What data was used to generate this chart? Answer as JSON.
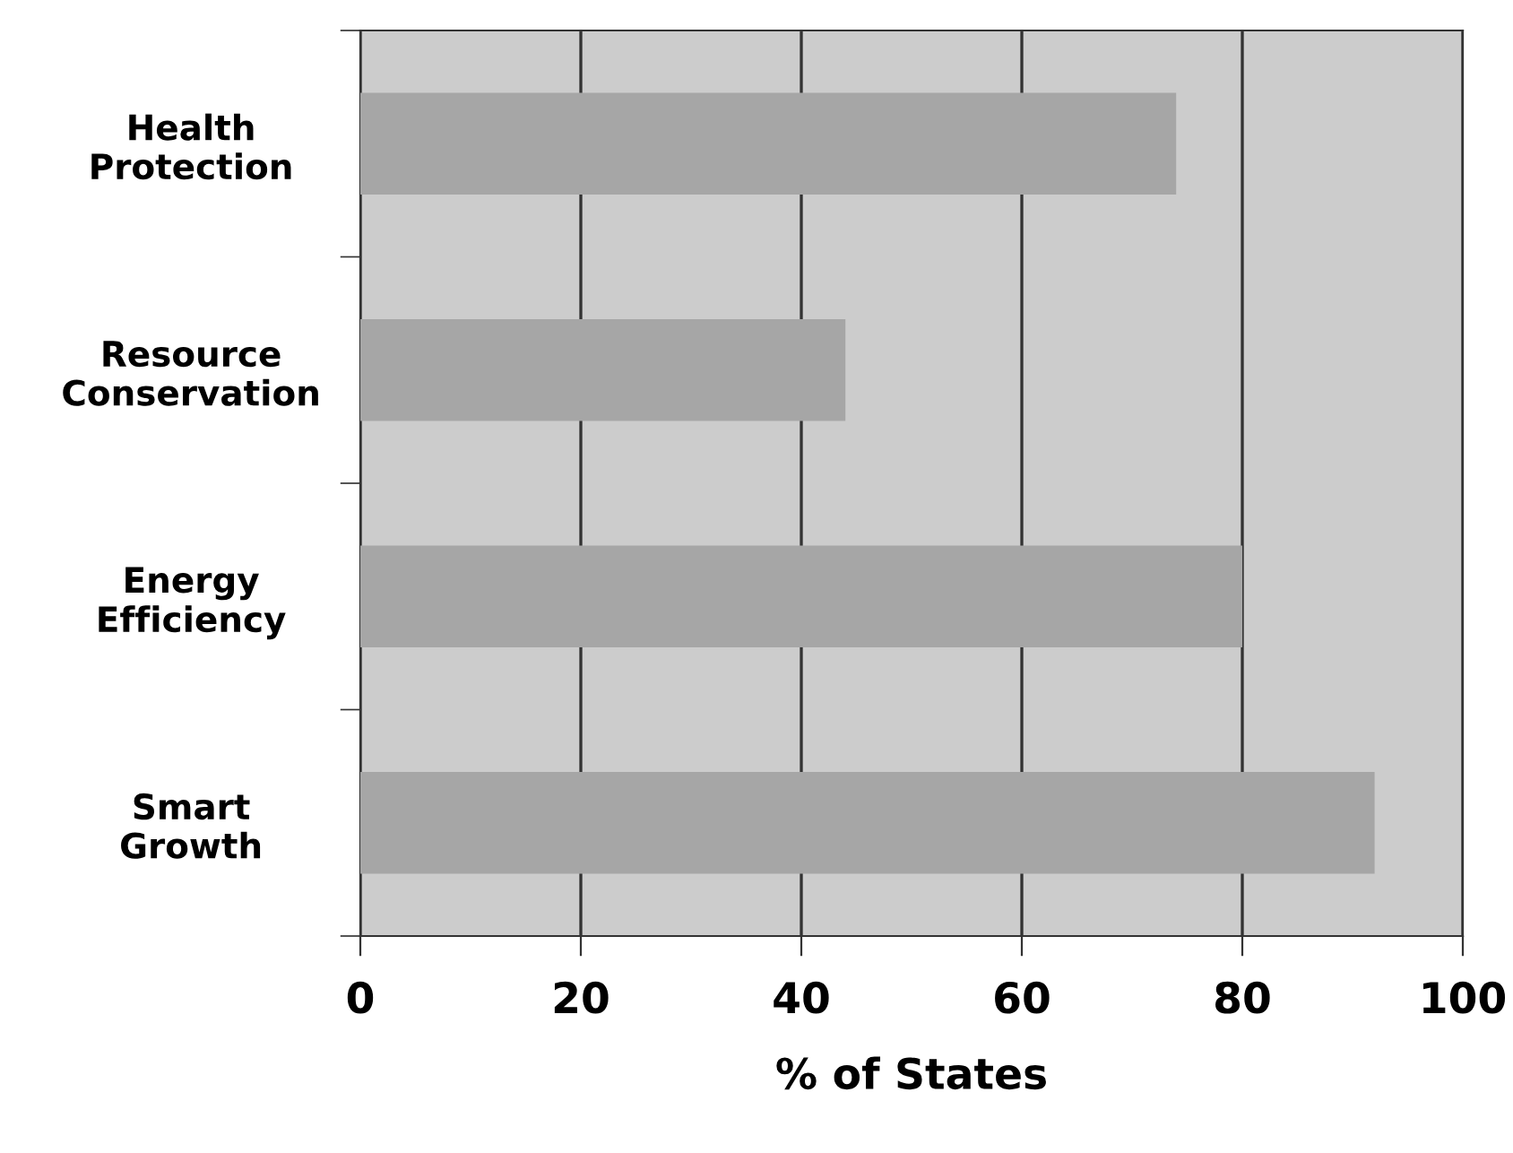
{
  "chart_data": {
    "type": "bar",
    "orientation": "horizontal",
    "xlabel": "% of States",
    "categories": [
      "Health\nProtection",
      "Resource\nConservation",
      "Energy\nEfficiency",
      "Smart\nGrowth"
    ],
    "values": [
      74,
      44,
      80,
      92
    ],
    "color": "#a6a6a6",
    "xlim": [
      0,
      100
    ],
    "xticks": [
      0,
      20,
      40,
      60,
      80,
      100
    ],
    "grid": "x"
  }
}
